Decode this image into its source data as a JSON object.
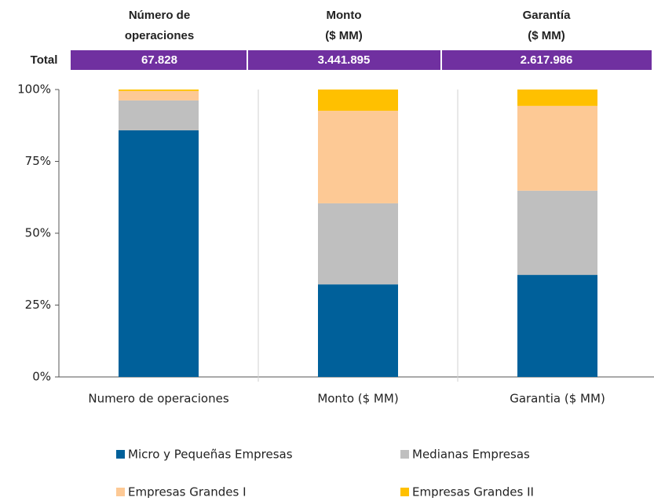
{
  "chart_data": {
    "type": "stacked_bar",
    "header": {
      "label": "Total",
      "columns": [
        {
          "title_lines": [
            "Número de",
            "operaciones"
          ],
          "total": "67.828"
        },
        {
          "title_lines": [
            "Monto",
            "($ MM)"
          ],
          "total": "3.441.895"
        },
        {
          "title_lines": [
            "Garantía",
            "($ MM)"
          ],
          "total": "2.617.986"
        }
      ],
      "color": "#7030a0"
    },
    "categories": [
      "Numero de operaciones",
      "Monto ($ MM)",
      "Garantia ($ MM)"
    ],
    "series": [
      {
        "name": "Micro y Pequeñas Empresas",
        "color": "#00609a",
        "values": [
          85.8,
          32.2,
          35.5
        ]
      },
      {
        "name": "Medianas Empresas",
        "color": "#bfbfbf",
        "values": [
          10.4,
          28.2,
          29.3
        ]
      },
      {
        "name": "Empresas Grandes I",
        "color": "#fdc995",
        "values": [
          3.3,
          32.2,
          29.5
        ]
      },
      {
        "name": "Empresas Grandes II",
        "color": "#ffc000",
        "values": [
          0.5,
          7.4,
          5.7
        ]
      }
    ],
    "ylim": [
      0,
      100
    ],
    "yticks": [
      {
        "value": 0,
        "label": "0%"
      },
      {
        "value": 25,
        "label": "25%"
      },
      {
        "value": 50,
        "label": "50%"
      },
      {
        "value": 75,
        "label": "75%"
      },
      {
        "value": 100,
        "label": "100%"
      }
    ]
  }
}
